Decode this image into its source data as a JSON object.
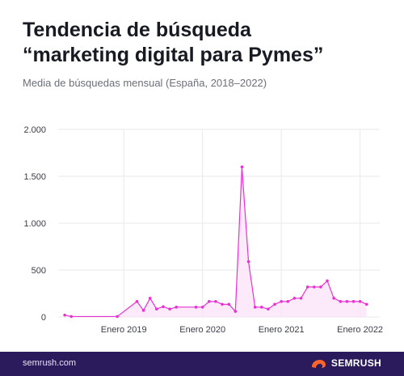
{
  "header": {
    "title_line1": "Tendencia de búsqueda",
    "title_line2": "“marketing digital para Pymes”",
    "subtitle": "Media de búsquedas mensual (España, 2018–2022)"
  },
  "footer": {
    "url": "semrush.com",
    "brand": "SEMRUSH",
    "brand_icon": "semrush-fire-logo-icon",
    "background": "#2b1a5c",
    "accent": "#ff642d"
  },
  "chart_data": {
    "type": "area",
    "title": "Tendencia de búsqueda “marketing digital para Pymes”",
    "subtitle": "Media de búsquedas mensual (España, 2018–2022)",
    "xlabel": "",
    "ylabel": "",
    "ylim": [
      0,
      2000
    ],
    "y_ticks": [
      0,
      500,
      1000,
      1500,
      2000
    ],
    "y_tick_labels": [
      "0",
      "500",
      "1.000",
      "1.500",
      "2.000"
    ],
    "x_range": [
      "2018-03",
      "2022-04"
    ],
    "x_ticks": [
      {
        "x": "2019-01",
        "label": "Enero 2019"
      },
      {
        "x": "2020-01",
        "label": "Enero 2020"
      },
      {
        "x": "2021-01",
        "label": "Enero 2021"
      },
      {
        "x": "2022-01",
        "label": "Enero 2022"
      }
    ],
    "grid": true,
    "color": "#e832d2",
    "fill_color": "#fbe3f8",
    "series": [
      {
        "values": [
          {
            "x": "2018-04",
            "y": 20
          },
          {
            "x": "2018-05",
            "y": 5
          },
          {
            "x": "2018-12",
            "y": 5
          },
          {
            "x": "2019-03",
            "y": 165
          },
          {
            "x": "2019-04",
            "y": 70
          },
          {
            "x": "2019-05",
            "y": 200
          },
          {
            "x": "2019-06",
            "y": 85
          },
          {
            "x": "2019-07",
            "y": 110
          },
          {
            "x": "2019-08",
            "y": 85
          },
          {
            "x": "2019-09",
            "y": 105
          },
          {
            "x": "2019-12",
            "y": 105
          },
          {
            "x": "2020-01",
            "y": 105
          },
          {
            "x": "2020-02",
            "y": 165
          },
          {
            "x": "2020-03",
            "y": 165
          },
          {
            "x": "2020-04",
            "y": 135
          },
          {
            "x": "2020-05",
            "y": 135
          },
          {
            "x": "2020-06",
            "y": 60
          },
          {
            "x": "2020-07",
            "y": 1600
          },
          {
            "x": "2020-08",
            "y": 590
          },
          {
            "x": "2020-09",
            "y": 105
          },
          {
            "x": "2020-10",
            "y": 105
          },
          {
            "x": "2020-11",
            "y": 85
          },
          {
            "x": "2020-12",
            "y": 135
          },
          {
            "x": "2021-01",
            "y": 165
          },
          {
            "x": "2021-02",
            "y": 165
          },
          {
            "x": "2021-03",
            "y": 200
          },
          {
            "x": "2021-04",
            "y": 200
          },
          {
            "x": "2021-05",
            "y": 320
          },
          {
            "x": "2021-06",
            "y": 320
          },
          {
            "x": "2021-07",
            "y": 320
          },
          {
            "x": "2021-08",
            "y": 385
          },
          {
            "x": "2021-09",
            "y": 200
          },
          {
            "x": "2021-10",
            "y": 165
          },
          {
            "x": "2021-11",
            "y": 165
          },
          {
            "x": "2021-12",
            "y": 165
          },
          {
            "x": "2022-01",
            "y": 165
          },
          {
            "x": "2022-02",
            "y": 135
          }
        ]
      }
    ]
  }
}
